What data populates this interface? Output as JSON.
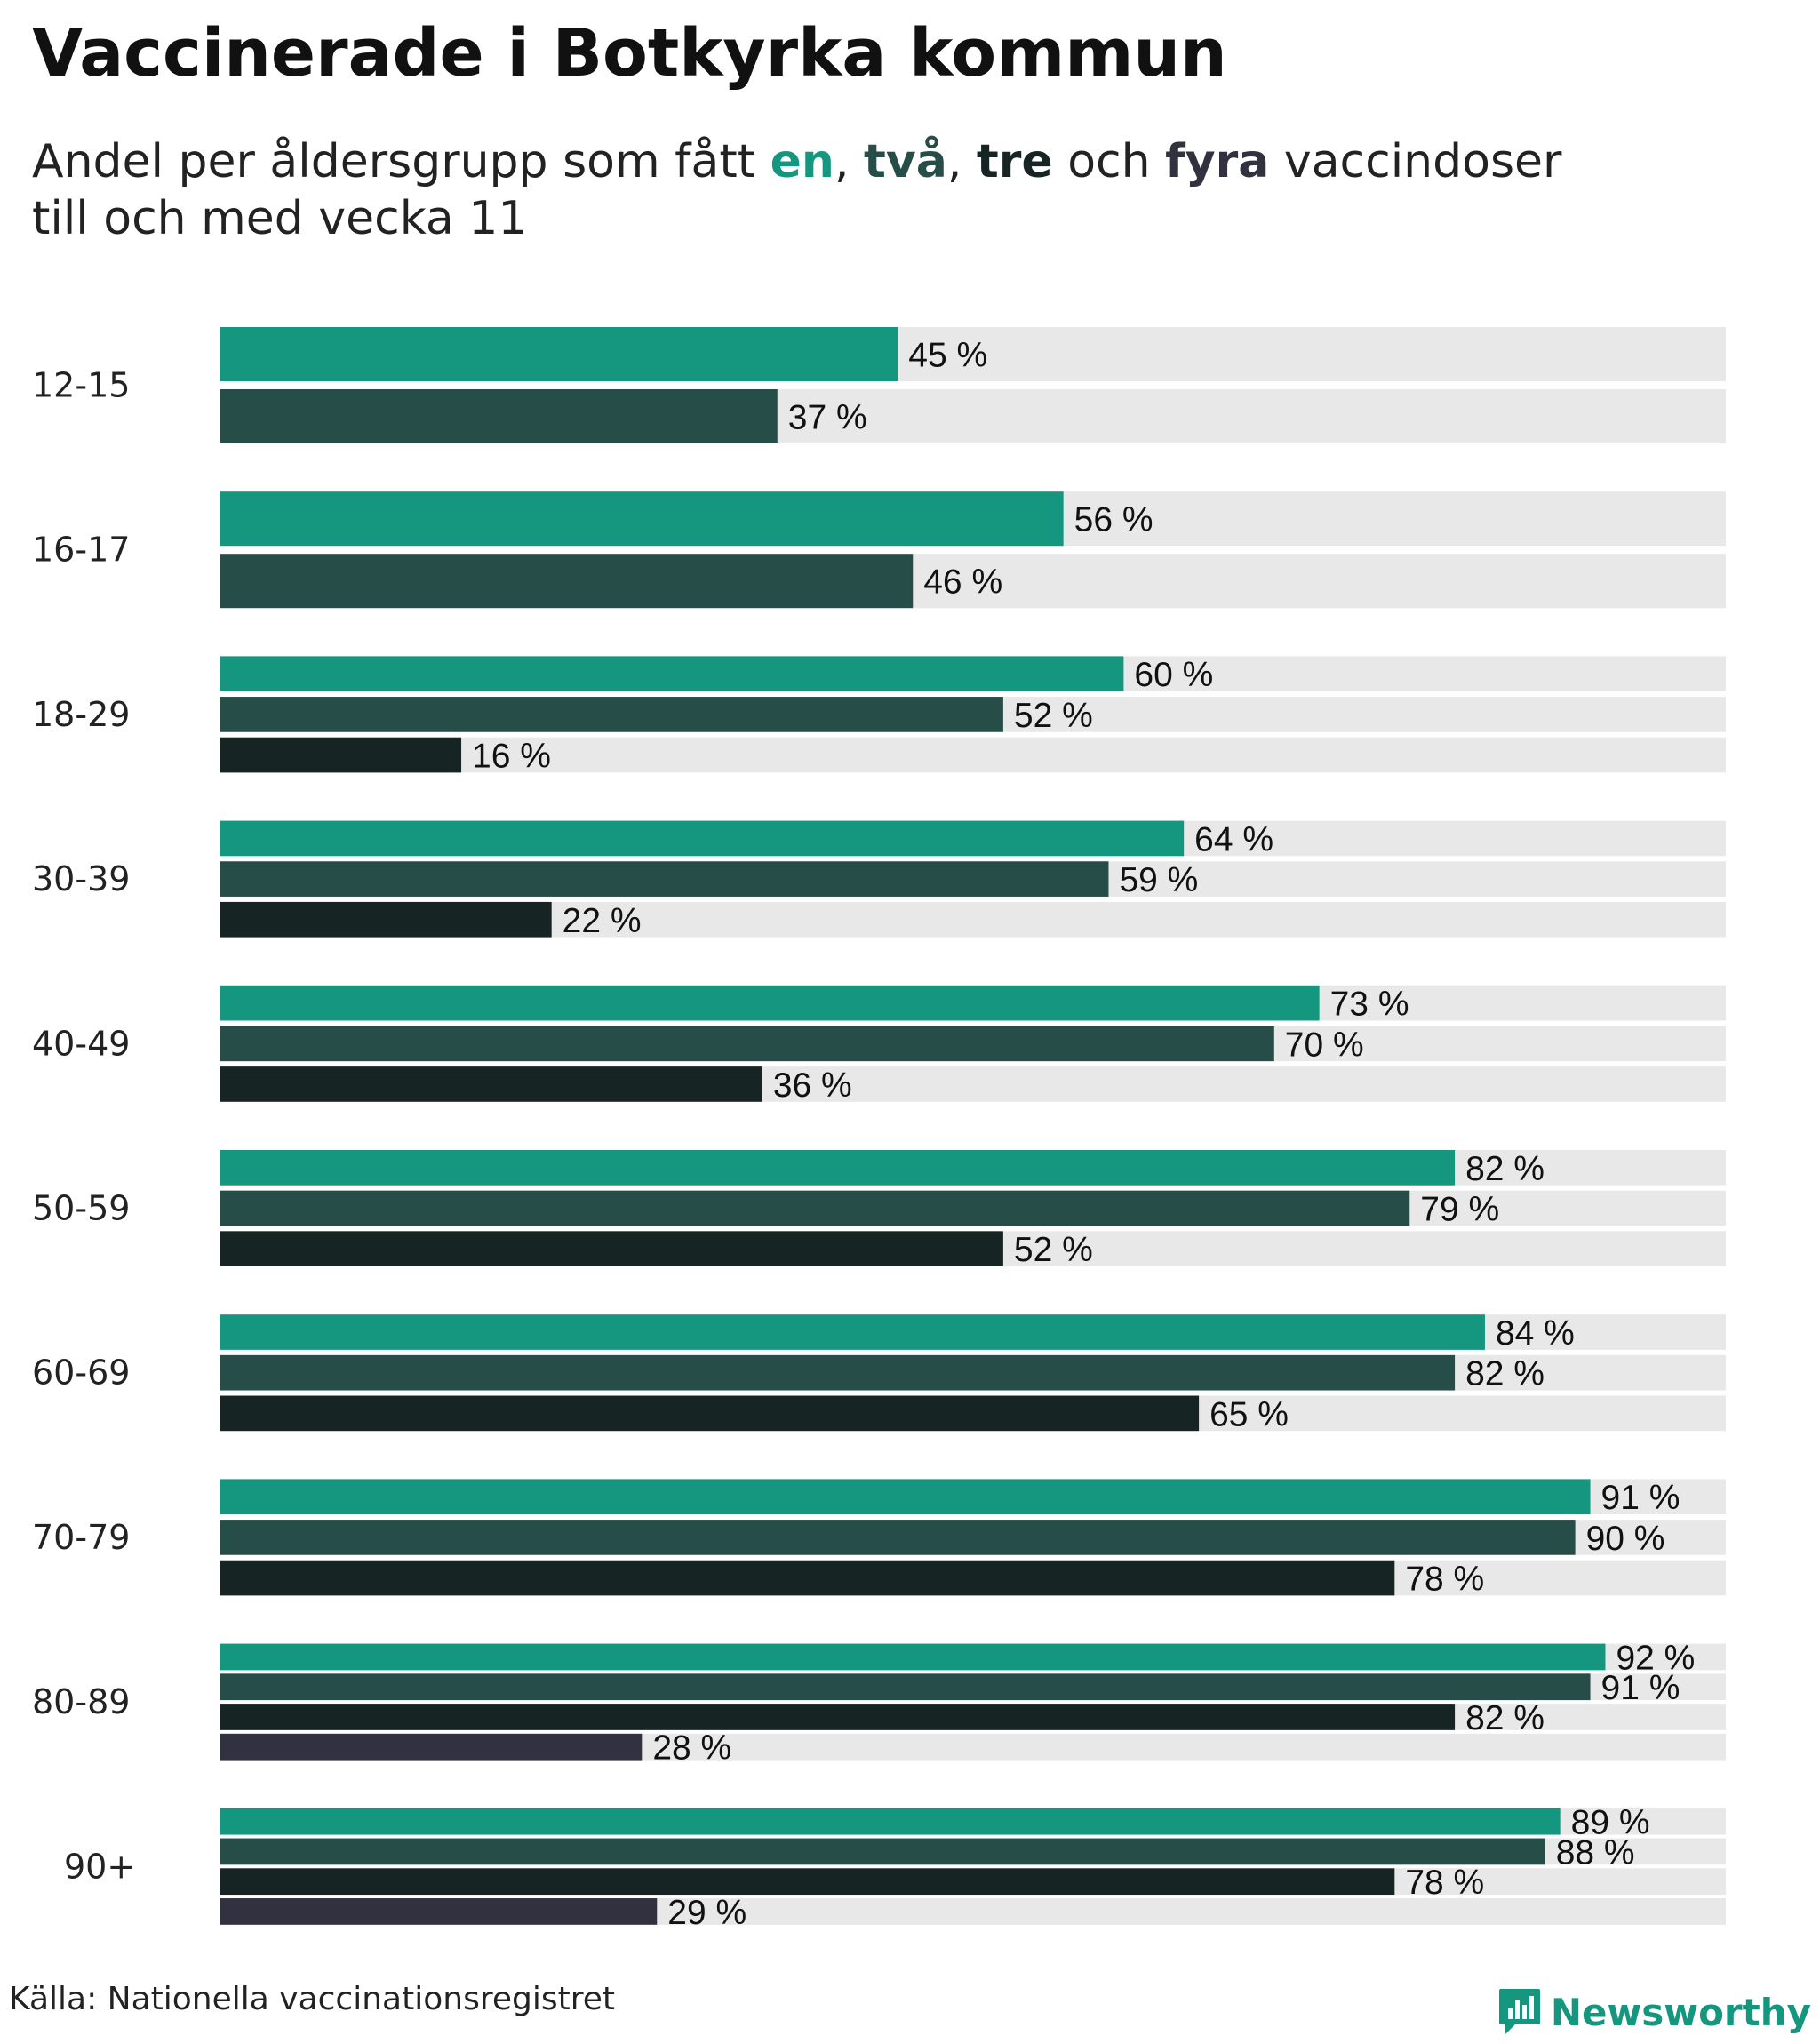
{
  "title": "Vaccinerade i Botkyrka kommun",
  "subtitle": {
    "part1": "Andel per åldersgrupp som fått ",
    "dose1": "en",
    "sep1": ", ",
    "dose2": "två",
    "sep2": ", ",
    "dose3": "tre",
    "sep3": " och ",
    "dose4": "fyra",
    "part2": " vaccindoser",
    "line2": "till och med vecka 11"
  },
  "colors": {
    "dose1": "#14967f",
    "dose2": "#264d47",
    "dose3": "#162524",
    "dose4": "#31313f",
    "track": "#e8e8e8"
  },
  "source": "Källa: Nationella vaccinationsregistret",
  "brand": {
    "name": "Newsworthy",
    "icon": "bar-chart-speech-icon"
  },
  "chart_data": {
    "type": "bar",
    "orientation": "horizontal",
    "title": "Vaccinerade i Botkyrka kommun",
    "xlabel": "",
    "ylabel": "",
    "xlim": [
      0,
      100
    ],
    "unit": "%",
    "grid": false,
    "categories": [
      "12-15",
      "16-17",
      "18-29",
      "30-39",
      "40-49",
      "50-59",
      "60-69",
      "70-79",
      "80-89",
      "90+"
    ],
    "series": [
      {
        "name": "en",
        "values": [
          45,
          56,
          60,
          64,
          73,
          82,
          84,
          91,
          92,
          89
        ]
      },
      {
        "name": "två",
        "values": [
          37,
          46,
          52,
          59,
          70,
          79,
          82,
          90,
          91,
          88
        ]
      },
      {
        "name": "tre",
        "values": [
          null,
          null,
          16,
          22,
          36,
          52,
          65,
          78,
          82,
          78
        ]
      },
      {
        "name": "fyra",
        "values": [
          null,
          null,
          null,
          null,
          null,
          null,
          null,
          null,
          28,
          29
        ]
      }
    ]
  }
}
